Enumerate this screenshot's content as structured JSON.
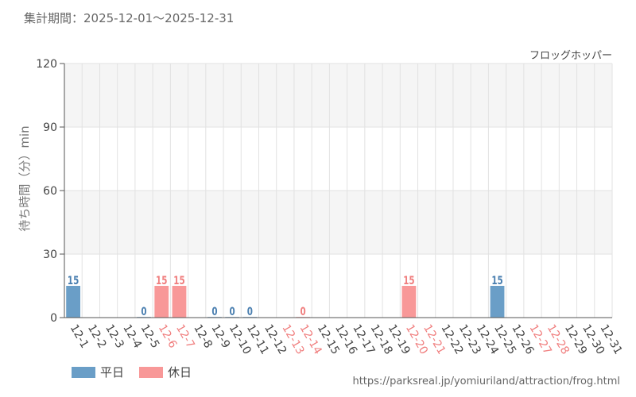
{
  "header": {
    "period": "集計期間：2025-12-01～2025-12-31"
  },
  "colors": {
    "weekday": "#6a9ec7",
    "holiday": "#f89898",
    "weekday_label": "#4a7fb0",
    "holiday_label": "#f07e7e",
    "axis": "#555555",
    "grid": "#e2e2e2",
    "band": "#f5f5f5"
  },
  "legend": {
    "weekday_label": "平日",
    "holiday_label": "休日"
  },
  "source": "https://parksreal.jp/yomiuriland/attraction/frog.html",
  "chart_data": {
    "type": "bar",
    "title": "フロッグホッパー",
    "ylabel": "待ち時間（分）min",
    "xlabel": "",
    "ylim": [
      0,
      120
    ],
    "yticks": [
      0,
      30,
      60,
      90,
      120
    ],
    "grid": true,
    "legend_position": "bottom-left",
    "categories": [
      "12-1",
      "12-2",
      "12-3",
      "12-4",
      "12-5",
      "12-6",
      "12-7",
      "12-8",
      "12-9",
      "12-10",
      "12-11",
      "12-12",
      "12-13",
      "12-14",
      "12-15",
      "12-16",
      "12-17",
      "12-18",
      "12-19",
      "12-20",
      "12-21",
      "12-22",
      "12-23",
      "12-24",
      "12-25",
      "12-26",
      "12-27",
      "12-28",
      "12-29",
      "12-30",
      "12-31"
    ],
    "day_type": [
      "weekday",
      "weekday",
      "weekday",
      "weekday",
      "weekday",
      "holiday",
      "holiday",
      "weekday",
      "weekday",
      "weekday",
      "weekday",
      "weekday",
      "holiday",
      "holiday",
      "weekday",
      "weekday",
      "weekday",
      "weekday",
      "weekday",
      "holiday",
      "holiday",
      "weekday",
      "weekday",
      "weekday",
      "weekday",
      "weekday",
      "holiday",
      "holiday",
      "weekday",
      "weekday",
      "weekday"
    ],
    "values": [
      15,
      null,
      null,
      null,
      0,
      15,
      15,
      null,
      0,
      0,
      0,
      null,
      null,
      0,
      null,
      null,
      null,
      null,
      null,
      15,
      null,
      null,
      null,
      null,
      15,
      null,
      null,
      null,
      null,
      null,
      null
    ]
  }
}
